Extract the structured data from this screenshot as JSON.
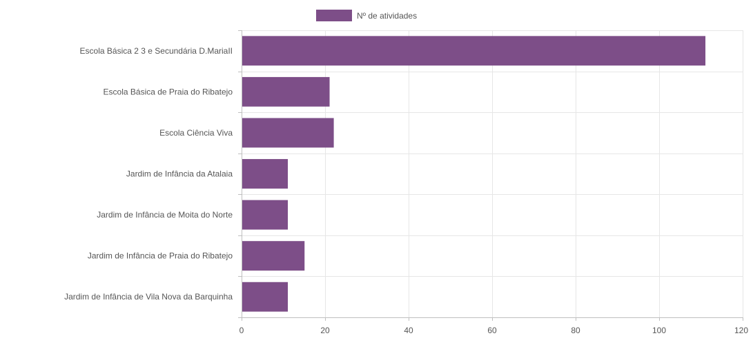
{
  "chart_data": {
    "type": "bar",
    "orientation": "horizontal",
    "categories": [
      "Escola Básica 2 3 e Secundária D.MariaII",
      "Escola Básica de Praia do Ribatejo",
      "Escola Ciência Viva",
      "Jardim de Infância da Atalaia",
      "Jardim de Infância de Moita do Norte",
      "Jardim de Infância de Praia do Ribatejo",
      "Jardim de Infância de Vila Nova da Barquinha"
    ],
    "series": [
      {
        "name": "Nº de atividades",
        "color": "#7d4e88",
        "values": [
          111,
          21,
          22,
          11,
          11,
          15,
          11
        ]
      }
    ],
    "xlim": [
      0,
      120
    ],
    "xticks": [
      0,
      20,
      40,
      60,
      80,
      100,
      120
    ],
    "grid": true,
    "legend": "top-center",
    "title": "",
    "xlabel": "",
    "ylabel": ""
  }
}
